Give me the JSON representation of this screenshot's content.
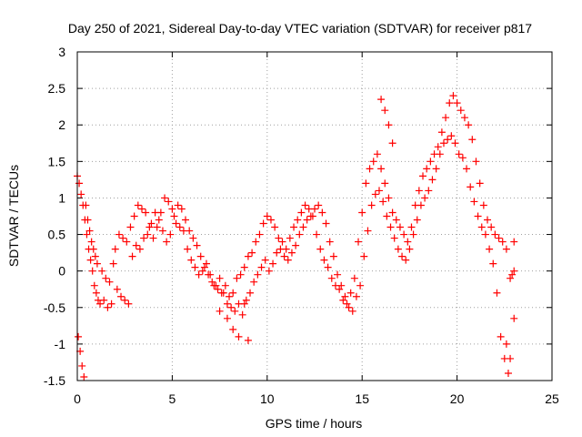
{
  "chart_data": {
    "type": "scatter",
    "title": "Day 250 of 2021, Sidereal Day-to-day VTEC variation (SDTVAR) for receiver p817",
    "xlabel": "GPS time / hours",
    "ylabel": "SDTVAR / TECUs",
    "xlim": [
      0,
      25
    ],
    "ylim": [
      -1.5,
      3
    ],
    "xticks": [
      "0",
      "5",
      "10",
      "15",
      "20",
      "25"
    ],
    "yticks": [
      "-1.5",
      "-1",
      "-0.5",
      "0",
      "0.5",
      "1",
      "1.5",
      "2",
      "2.5",
      "3"
    ],
    "grid": true,
    "marker": "+",
    "color": "#ff0000",
    "series": [
      {
        "name": "SDTVAR",
        "x": [
          0.0,
          0.1,
          0.2,
          0.3,
          0.4,
          0.5,
          0.6,
          0.7,
          0.8,
          0.9,
          1.0,
          1.1,
          1.2,
          1.4,
          1.6,
          1.8,
          1.9,
          2.0,
          2.2,
          2.4,
          2.6,
          2.8,
          3.0,
          3.2,
          3.4,
          3.6,
          3.8,
          4.0,
          4.2,
          4.4,
          4.6,
          4.8,
          5.0,
          5.2,
          5.4,
          5.6,
          5.8,
          6.0,
          6.2,
          6.4,
          6.6,
          6.8,
          7.0,
          7.2,
          7.4,
          7.6,
          7.8,
          8.0,
          8.2,
          8.4,
          8.6,
          8.8,
          9.0,
          9.2,
          9.4,
          9.6,
          9.8,
          10.0,
          10.2,
          10.4,
          10.6,
          10.8,
          11.0,
          11.2,
          11.4,
          11.6,
          11.8,
          12.0,
          12.2,
          12.4,
          12.6,
          12.8,
          13.0,
          13.2,
          13.4,
          13.6,
          13.8,
          14.0,
          14.2,
          14.4,
          14.6,
          14.8,
          15.0,
          15.2,
          15.4,
          15.6,
          15.8,
          16.0,
          16.2,
          16.4,
          16.6,
          16.8,
          17.0,
          17.2,
          17.4,
          17.6,
          17.8,
          18.0,
          18.2,
          18.4,
          18.6,
          18.8,
          19.0,
          19.2,
          19.4,
          19.6,
          19.8,
          20.0,
          20.2,
          20.4,
          20.6,
          20.8,
          21.0,
          21.2,
          21.4,
          21.6,
          21.8,
          22.0,
          22.2,
          22.4,
          22.6,
          22.8,
          23.0,
          0.05,
          0.15,
          0.25,
          0.35,
          0.45,
          0.55,
          0.65,
          0.75,
          0.85,
          0.95,
          1.05,
          1.3,
          1.5,
          1.7,
          2.1,
          2.3,
          2.5,
          2.7,
          2.9,
          3.1,
          3.3,
          3.5,
          3.7,
          3.9,
          4.1,
          4.3,
          4.5,
          4.7,
          4.9,
          5.1,
          5.3,
          5.5,
          5.7,
          5.9,
          6.1,
          6.3,
          6.5,
          6.7,
          6.9,
          7.1,
          7.3,
          7.5,
          7.7,
          7.9,
          8.1,
          8.3,
          8.5,
          8.7,
          8.9,
          9.1,
          9.3,
          9.5,
          9.7,
          9.9,
          10.1,
          10.3,
          10.5,
          10.7,
          10.9,
          11.1,
          11.3,
          11.5,
          11.7,
          11.9,
          12.1,
          12.3,
          12.5,
          12.7,
          12.9,
          13.1,
          13.3,
          13.5,
          13.7,
          13.9,
          14.1,
          14.3,
          14.5,
          14.7,
          14.9,
          15.1,
          15.3,
          15.5,
          15.7,
          15.9,
          16.1,
          16.3,
          16.5,
          16.7,
          16.9,
          17.1,
          17.3,
          17.5,
          17.7,
          17.9,
          18.1,
          18.3,
          18.5,
          18.7,
          18.9,
          19.1,
          19.3,
          19.5,
          19.7,
          19.9,
          20.1,
          20.3,
          20.5,
          20.7,
          20.9,
          21.1,
          21.3,
          21.5,
          21.7,
          21.9,
          22.1,
          22.3,
          22.5,
          22.7,
          22.9,
          23.0,
          7.5,
          7.9,
          8.2,
          8.5,
          8.8,
          9.0,
          16.0,
          16.2,
          16.4,
          16.6,
          22.6,
          22.8,
          23.0
        ],
        "y": [
          1.3,
          1.2,
          1.05,
          0.9,
          0.7,
          0.5,
          0.3,
          0.15,
          0.0,
          -0.2,
          -0.3,
          -0.4,
          -0.45,
          -0.4,
          -0.5,
          -0.45,
          0.1,
          0.3,
          0.5,
          0.45,
          0.4,
          0.6,
          0.75,
          0.9,
          0.85,
          0.8,
          0.6,
          0.45,
          0.6,
          0.8,
          1.0,
          0.95,
          0.85,
          0.65,
          0.6,
          0.55,
          0.3,
          0.15,
          0.05,
          -0.05,
          0.0,
          0.1,
          -0.05,
          -0.2,
          -0.25,
          -0.3,
          -0.2,
          -0.35,
          -0.3,
          -0.1,
          -0.05,
          0.05,
          0.2,
          0.25,
          0.4,
          0.5,
          0.65,
          0.75,
          0.7,
          0.6,
          0.45,
          0.4,
          0.3,
          0.45,
          0.6,
          0.7,
          0.8,
          0.9,
          0.85,
          0.75,
          0.5,
          0.3,
          0.15,
          0.05,
          -0.1,
          -0.2,
          -0.25,
          -0.4,
          -0.45,
          -0.3,
          -0.1,
          0.4,
          0.8,
          1.2,
          1.4,
          1.5,
          1.6,
          1.4,
          1.2,
          1.0,
          0.8,
          0.7,
          0.6,
          0.5,
          0.4,
          0.6,
          0.9,
          1.1,
          1.3,
          1.4,
          1.5,
          1.6,
          1.7,
          1.9,
          2.1,
          2.3,
          2.4,
          2.3,
          2.2,
          2.1,
          2.0,
          1.8,
          1.5,
          1.2,
          0.9,
          0.7,
          0.6,
          0.5,
          0.45,
          0.4,
          0.3,
          -0.1,
          -0.65,
          -0.9,
          -1.1,
          -1.3,
          -1.45,
          0.9,
          0.7,
          0.55,
          0.4,
          0.3,
          0.2,
          0.1,
          0.0,
          -0.1,
          -0.15,
          -0.25,
          -0.35,
          -0.4,
          -0.45,
          0.2,
          0.35,
          0.3,
          0.45,
          0.5,
          0.65,
          0.8,
          0.7,
          0.55,
          0.4,
          0.5,
          0.75,
          0.9,
          0.85,
          0.7,
          0.55,
          0.45,
          0.35,
          0.2,
          0.05,
          -0.05,
          -0.15,
          -0.2,
          -0.1,
          -0.3,
          -0.45,
          -0.5,
          -0.55,
          -0.45,
          -0.6,
          -0.4,
          -0.3,
          -0.15,
          -0.05,
          0.05,
          0.15,
          0.0,
          0.1,
          0.25,
          0.3,
          0.2,
          0.15,
          0.25,
          0.35,
          0.5,
          0.6,
          0.7,
          0.75,
          0.85,
          0.9,
          0.8,
          0.65,
          0.4,
          0.2,
          -0.05,
          -0.2,
          -0.35,
          -0.5,
          -0.55,
          -0.35,
          -0.2,
          0.2,
          0.55,
          0.9,
          1.05,
          1.1,
          0.95,
          0.75,
          0.6,
          0.45,
          0.3,
          0.2,
          0.15,
          0.3,
          0.5,
          0.7,
          0.9,
          1.0,
          1.1,
          1.25,
          1.4,
          1.6,
          1.75,
          1.8,
          1.85,
          1.75,
          1.6,
          1.55,
          1.4,
          1.15,
          0.95,
          0.75,
          0.6,
          0.5,
          0.3,
          0.1,
          -0.3,
          -0.9,
          -1.2,
          -1.4,
          -0.05,
          0.4,
          -0.55,
          -0.65,
          -0.8,
          -0.9,
          -0.45,
          -0.95,
          2.35,
          2.2,
          2.0,
          1.75,
          -1.0,
          -1.2,
          0.0
        ]
      }
    ]
  }
}
